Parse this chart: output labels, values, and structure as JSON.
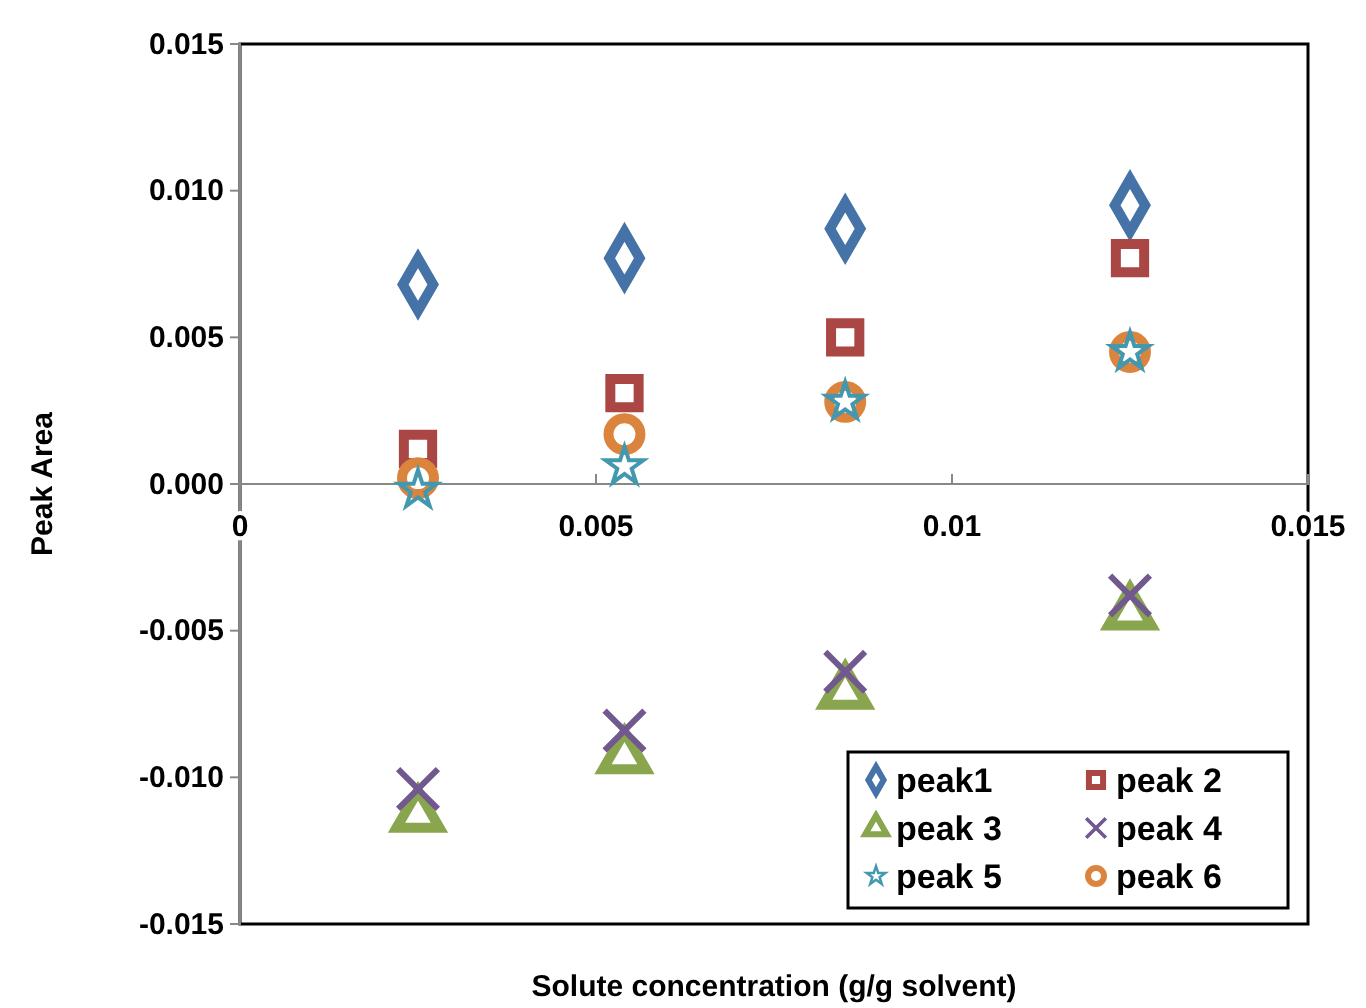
{
  "chart_data": {
    "type": "scatter",
    "xlabel": "Solute concentration (g/g solvent)",
    "ylabel": "Peak Area",
    "x": [
      0.0025,
      0.0054,
      0.0085,
      0.0125
    ],
    "xlim": [
      0,
      0.015
    ],
    "xticks": [
      0,
      0.005,
      0.01,
      0.015
    ],
    "ylim": [
      -0.015,
      0.015
    ],
    "yticks": [
      {
        "value": -0.015,
        "label": "-0.015"
      },
      {
        "value": -0.01,
        "label": "-0.010"
      },
      {
        "value": -0.005,
        "label": "-0.005"
      },
      {
        "value": 0,
        "label": "0.000"
      },
      {
        "value": 0.005,
        "label": "0.005"
      },
      {
        "value": 0.01,
        "label": "0.010"
      },
      {
        "value": 0.015,
        "label": "0.015"
      }
    ],
    "grid": false,
    "legend": "bottom right",
    "series": [
      {
        "name": "peak1",
        "color": "#4572a7",
        "marker": "diamond",
        "values": [
          0.0068,
          0.0077,
          0.0087,
          0.0095
        ]
      },
      {
        "name": "peak 2",
        "color": "#aa4643",
        "marker": "square",
        "values": [
          0.0012,
          0.0031,
          0.005,
          0.0077
        ]
      },
      {
        "name": "peak 3",
        "color": "#89a54e",
        "marker": "triangle",
        "values": [
          -0.0113,
          -0.0093,
          -0.0071,
          -0.0044
        ]
      },
      {
        "name": "peak 4",
        "color": "#71588f",
        "marker": "cross",
        "values": [
          -0.0104,
          -0.0084,
          -0.0064,
          -0.0038
        ]
      },
      {
        "name": "peak 5",
        "color": "#4198af",
        "marker": "star",
        "values": [
          -0.0002,
          0.0006,
          0.0028,
          0.0045
        ]
      },
      {
        "name": "peak 6",
        "color": "#db843d",
        "marker": "circle",
        "values": [
          0.0002,
          0.0017,
          0.0028,
          0.0045
        ]
      }
    ]
  }
}
